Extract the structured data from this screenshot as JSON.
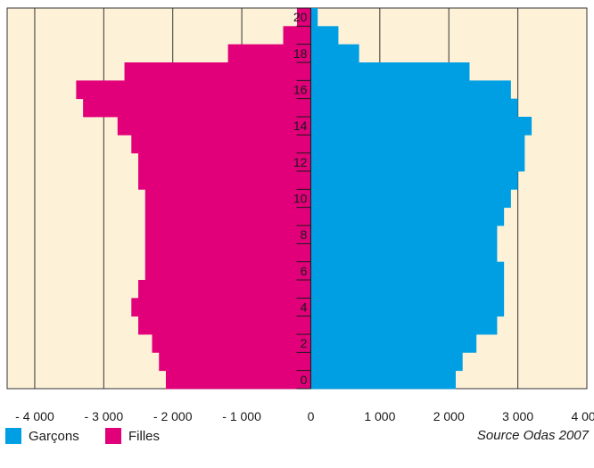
{
  "chart_data": {
    "type": "bar",
    "orientation": "horizontal-pyramid",
    "ages": [
      0,
      1,
      2,
      3,
      4,
      5,
      6,
      7,
      8,
      9,
      10,
      11,
      12,
      13,
      14,
      15,
      16,
      17,
      18,
      19,
      20
    ],
    "age_tick_labels": [
      "0",
      "2",
      "4",
      "6",
      "8",
      "10",
      "12",
      "14",
      "16",
      "18",
      "20"
    ],
    "series": [
      {
        "name": "Garçons",
        "color": "#009fe3",
        "values": [
          2100,
          2200,
          2400,
          2700,
          2800,
          2800,
          2800,
          2700,
          2700,
          2800,
          2900,
          3000,
          3100,
          3100,
          3200,
          3000,
          2900,
          2300,
          700,
          400,
          100
        ]
      },
      {
        "name": "Filles",
        "color": "#e2007a",
        "values": [
          2100,
          2200,
          2300,
          2500,
          2600,
          2500,
          2400,
          2400,
          2400,
          2400,
          2400,
          2500,
          2500,
          2600,
          2800,
          3300,
          3400,
          2700,
          1200,
          400,
          200
        ]
      }
    ],
    "x_tick_labels": [
      "- 4 000",
      "- 3 000",
      "- 2 000",
      "- 1 000",
      "0",
      "1 000",
      "2 000",
      "3 000",
      "4 000"
    ],
    "x_tick_values": [
      -4000,
      -3000,
      -2000,
      -1000,
      0,
      1000,
      2000,
      3000,
      4000
    ],
    "xlim": [
      -4400,
      4000
    ],
    "grid": true,
    "background": "#fdf1d8"
  },
  "legend": {
    "boys_label": "Garçons",
    "girls_label": "Filles",
    "source": "Source Odas 2007"
  }
}
